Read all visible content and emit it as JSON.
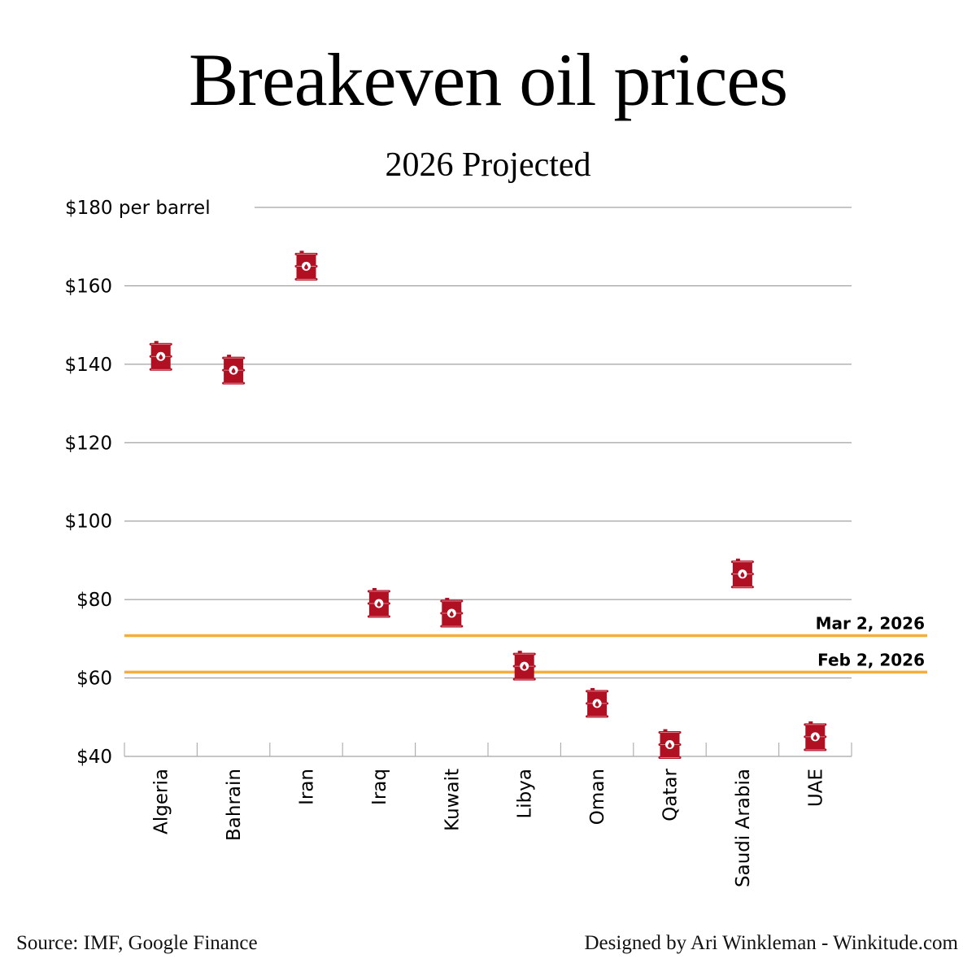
{
  "header": {
    "title": "Breakeven oil prices",
    "subtitle": "2026 Projected"
  },
  "footer": {
    "source": "Source: IMF, Google Finance",
    "credit": "Designed by Ari Winkleman - Winkitude.com"
  },
  "colors": {
    "barrel": "#b10f22",
    "barrel_detail": "#ffffff",
    "reference_line": "#f5ae3d",
    "grid": "#8c8c8c"
  },
  "chart_data": {
    "type": "scatter",
    "title": "Breakeven oil prices",
    "subtitle": "2026 Projected",
    "xlabel": "",
    "ylabel": "per barrel",
    "marker": "oil-barrel",
    "ylim": [
      40,
      180
    ],
    "yticks": [
      40,
      60,
      80,
      100,
      120,
      140,
      160,
      180
    ],
    "ytick_labels": [
      "$40",
      "$60",
      "$80",
      "$100",
      "$120",
      "$140",
      "$160",
      "$180 per barrel"
    ],
    "grid": true,
    "categories": [
      "Algeria",
      "Bahrain",
      "Iran",
      "Iraq",
      "Kuwait",
      "Libya",
      "Oman",
      "Qatar",
      "Saudi Arabia",
      "UAE"
    ],
    "values": [
      142,
      138.5,
      165,
      79,
      76.5,
      63,
      53.5,
      43,
      86.5,
      45
    ],
    "reference_lines": [
      {
        "label": "Mar 2, 2026",
        "value": 70.8
      },
      {
        "label": "Feb 2, 2026",
        "value": 61.5
      }
    ]
  }
}
